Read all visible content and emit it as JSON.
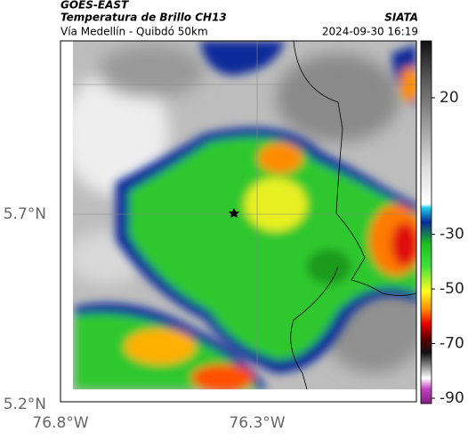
{
  "header": {
    "source": "GOES-EAST",
    "title": "Temperatura de Brillo CH13",
    "subtitle": "Vía Medellín - Quibdó 50km",
    "brand": "SIATA",
    "timestamp": "2024-09-30 16:19"
  },
  "axes": {
    "lat_labels": [
      "5.7°N",
      "5.2°N"
    ],
    "lon_labels": [
      "76.8°W",
      "76.3°W"
    ]
  },
  "colorbar": {
    "ticks": [
      20,
      -30,
      -50,
      -70,
      -90
    ]
  }
}
